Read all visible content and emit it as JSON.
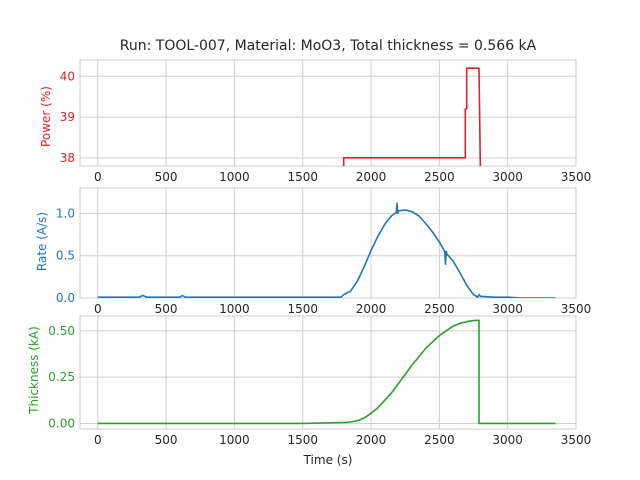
{
  "chart_data": [
    {
      "type": "line",
      "title": "Run: TOOL-007, Material: MoO3, Total thickness = 0.566 kA",
      "ylabel": "Power (%)",
      "xlabel": "",
      "xlim": [
        -130,
        3500
      ],
      "ylim": [
        37.8,
        40.4
      ],
      "xticks": [
        "0",
        "500",
        "1000",
        "1500",
        "2000",
        "2500",
        "3000",
        "3500"
      ],
      "yticks": [
        "38",
        "39",
        "40"
      ],
      "color": "#d62728",
      "grid": true,
      "series": [
        {
          "x": [
            1800,
            1800,
            2690,
            2690,
            2700,
            2700,
            2710,
            2710,
            2790,
            2790,
            2800
          ],
          "y": [
            37.7,
            38.0,
            38.0,
            39.2,
            39.2,
            40.2,
            40.2,
            40.2,
            40.2,
            40.2,
            37.7
          ]
        }
      ]
    },
    {
      "type": "line",
      "title": "",
      "ylabel": "Rate (A/s)",
      "xlabel": "",
      "xlim": [
        -130,
        3500
      ],
      "ylim": [
        0,
        1.3
      ],
      "xticks": [
        "0",
        "500",
        "1000",
        "1500",
        "2000",
        "2500",
        "3000",
        "3500"
      ],
      "yticks": [
        "0.0",
        "0.5",
        "1.0"
      ],
      "color": "#1f77b4",
      "grid": true,
      "series": [
        {
          "x": [
            0,
            300,
            330,
            360,
            600,
            620,
            640,
            1000,
            1500,
            1780,
            1800,
            1850,
            1900,
            1950,
            2000,
            2050,
            2100,
            2150,
            2185,
            2190,
            2195,
            2200,
            2250,
            2300,
            2350,
            2400,
            2450,
            2500,
            2540,
            2545,
            2550,
            2555,
            2600,
            2650,
            2700,
            2750,
            2780,
            2790,
            2800,
            2900,
            3000,
            3100,
            3200,
            3350
          ],
          "y": [
            0.01,
            0.01,
            0.03,
            0.01,
            0.01,
            0.03,
            0.01,
            0.01,
            0.01,
            0.01,
            0.04,
            0.08,
            0.2,
            0.37,
            0.56,
            0.73,
            0.87,
            0.97,
            1.01,
            1.12,
            1.0,
            1.03,
            1.04,
            1.02,
            0.97,
            0.88,
            0.78,
            0.66,
            0.55,
            0.4,
            0.55,
            0.52,
            0.44,
            0.3,
            0.15,
            0.04,
            0.01,
            0.04,
            0.02,
            0.01,
            0.01,
            0.0,
            0.0,
            0.0
          ]
        }
      ]
    },
    {
      "type": "line",
      "title": "",
      "ylabel": "Thickness (kA)",
      "xlabel": "Time (s)",
      "xlim": [
        -130,
        3500
      ],
      "ylim": [
        -0.03,
        0.58
      ],
      "xticks": [
        "0",
        "500",
        "1000",
        "1500",
        "2000",
        "2500",
        "3000",
        "3500"
      ],
      "yticks": [
        "0.00",
        "0.25",
        "0.50"
      ],
      "color": "#2ca02c",
      "grid": true,
      "series": [
        {
          "x": [
            0,
            500,
            1000,
            1500,
            1800,
            1850,
            1900,
            1950,
            2000,
            2050,
            2100,
            2150,
            2200,
            2250,
            2300,
            2350,
            2400,
            2450,
            2500,
            2550,
            2600,
            2650,
            2700,
            2750,
            2790,
            2790,
            2800,
            3000,
            3350
          ],
          "y": [
            0.0,
            0.0,
            0.0,
            0.0,
            0.005,
            0.008,
            0.015,
            0.03,
            0.055,
            0.085,
            0.125,
            0.165,
            0.215,
            0.265,
            0.315,
            0.36,
            0.405,
            0.44,
            0.475,
            0.5,
            0.525,
            0.54,
            0.55,
            0.555,
            0.557,
            0.0,
            0.0,
            0.0,
            0.0
          ]
        }
      ]
    }
  ]
}
